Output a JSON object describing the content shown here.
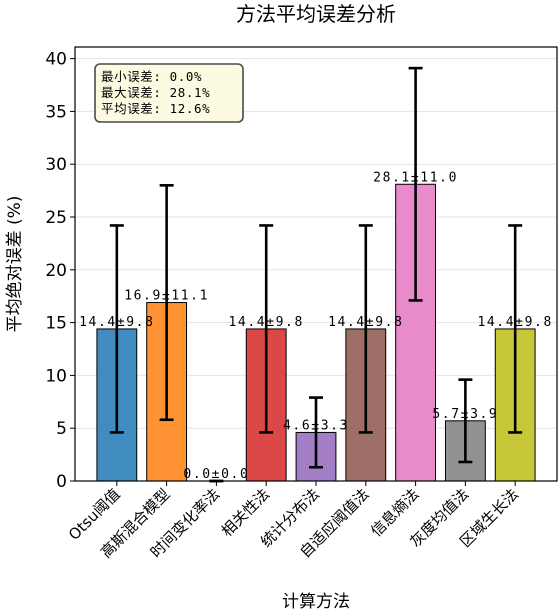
{
  "chart_data": {
    "type": "bar",
    "title": "方法平均误差分析",
    "xlabel": "计算方法",
    "ylabel": "平均绝对误差 (%)",
    "categories": [
      "Otsu阈值",
      "高斯混合模型",
      "时间变化率法",
      "相关性法",
      "统计分布法",
      "自适应阈值法",
      "信息熵法",
      "灰度均值法",
      "区域生长法"
    ],
    "values": [
      14.4,
      16.9,
      0.0,
      14.4,
      4.6,
      14.4,
      28.1,
      5.7,
      14.4
    ],
    "errors": [
      9.8,
      11.1,
      0.0,
      9.8,
      3.3,
      9.8,
      11.0,
      3.9,
      9.8
    ],
    "data_labels": [
      "14.4±9.8",
      "16.9±11.1",
      "0.0±0.0",
      "14.4±9.8",
      "4.6±3.3",
      "14.4±9.8",
      "28.1±11.0",
      "5.7±3.9",
      "14.4±9.8"
    ],
    "colors": [
      "#408bbf",
      "#ff9232",
      null,
      "#dc4748",
      "#a47ec7",
      "#9d6f66",
      "#e78bcb",
      "#929292",
      "#c6c739"
    ],
    "ylim": [
      0,
      41.1
    ],
    "yticks": [
      0,
      5,
      10,
      15,
      20,
      25,
      30,
      35,
      40
    ],
    "grid": "y",
    "annotation_box": {
      "placement": "top-left",
      "lines": [
        "最小误差: 0.0%",
        "最大误差: 28.1%",
        "平均误差: 12.6%"
      ]
    }
  }
}
